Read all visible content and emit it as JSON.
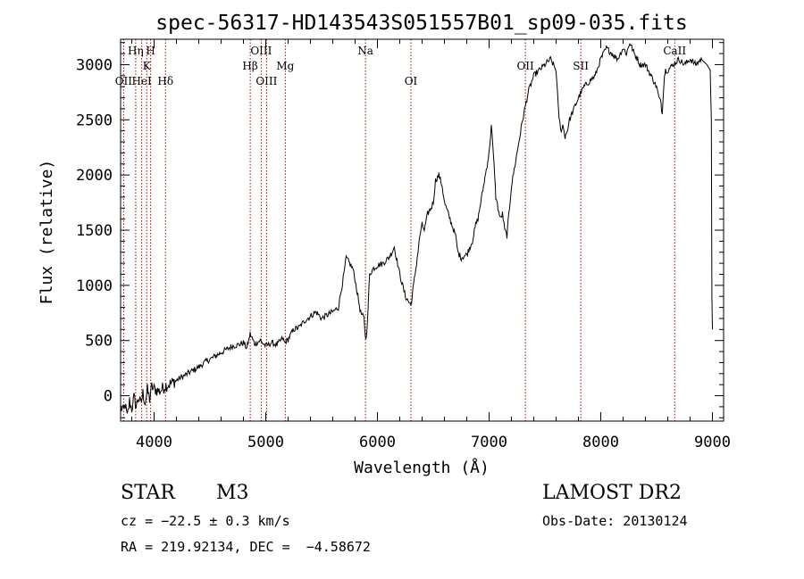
{
  "chart_data": {
    "type": "line",
    "title": "spec-56317-HD143543S051557B01_sp09-035.fits",
    "xlabel": "Wavelength (Å)",
    "ylabel": "Flux (relative)",
    "xlim": [
      3700,
      9100
    ],
    "ylim": [
      -230,
      3230
    ],
    "x_ticks": [
      4000,
      5000,
      6000,
      7000,
      8000,
      9000
    ],
    "y_ticks": [
      0,
      500,
      1000,
      1500,
      2000,
      2500,
      3000
    ],
    "x_tick_labels": [
      "4000",
      "5000",
      "6000",
      "7000",
      "8000",
      "9000"
    ],
    "y_tick_labels": [
      "0",
      "500",
      "1000",
      "1500",
      "2000",
      "2500",
      "3000"
    ],
    "grid": false,
    "series": [
      {
        "line_color": "#000000",
        "x": [
          3700,
          3720,
          3740,
          3760,
          3780,
          3800,
          3820,
          3840,
          3860,
          3880,
          3900,
          3920,
          3940,
          3960,
          3980,
          4000,
          4050,
          4100,
          4150,
          4200,
          4250,
          4300,
          4350,
          4400,
          4450,
          4500,
          4550,
          4600,
          4650,
          4700,
          4750,
          4800,
          4830,
          4860,
          4900,
          4950,
          5000,
          5050,
          5100,
          5150,
          5170,
          5200,
          5250,
          5300,
          5350,
          5400,
          5450,
          5500,
          5550,
          5600,
          5650,
          5700,
          5720,
          5750,
          5780,
          5800,
          5850,
          5880,
          5895,
          5910,
          5930,
          5960,
          6000,
          6050,
          6100,
          6130,
          6150,
          6200,
          6250,
          6280,
          6300,
          6350,
          6380,
          6400,
          6420,
          6450,
          6480,
          6500,
          6520,
          6550,
          6580,
          6600,
          6650,
          6700,
          6720,
          6750,
          6800,
          6850,
          6880,
          6900,
          6950,
          7000,
          7020,
          7050,
          7060,
          7080,
          7100,
          7120,
          7140,
          7160,
          7200,
          7250,
          7300,
          7350,
          7400,
          7450,
          7500,
          7550,
          7600,
          7620,
          7640,
          7660,
          7680,
          7700,
          7720,
          7740,
          7760,
          7800,
          7850,
          7900,
          7950,
          8000,
          8050,
          8100,
          8150,
          8200,
          8230,
          8260,
          8300,
          8330,
          8350,
          8400,
          8450,
          8500,
          8520,
          8540,
          8550,
          8560,
          8570,
          8580,
          8600,
          8650,
          8700,
          8750,
          8800,
          8850,
          8900,
          8950,
          8980,
          8990,
          8995,
          9000
        ],
        "y": [
          -100,
          -150,
          -80,
          -200,
          -50,
          -120,
          -20,
          -100,
          -10,
          -80,
          20,
          -60,
          50,
          -30,
          80,
          60,
          40,
          90,
          110,
          140,
          170,
          200,
          230,
          260,
          300,
          330,
          360,
          390,
          420,
          450,
          460,
          480,
          430,
          560,
          470,
          500,
          450,
          480,
          460,
          520,
          480,
          510,
          600,
          620,
          680,
          720,
          760,
          700,
          730,
          760,
          800,
          1100,
          1250,
          1200,
          1150,
          1050,
          750,
          700,
          500,
          650,
          1100,
          1150,
          1180,
          1200,
          1250,
          1300,
          1350,
          1100,
          900,
          850,
          820,
          1200,
          1450,
          1550,
          1500,
          1650,
          1700,
          1750,
          1950,
          2000,
          1900,
          1750,
          1600,
          1450,
          1300,
          1250,
          1280,
          1400,
          1550,
          1600,
          1900,
          2200,
          2450,
          2000,
          1800,
          1700,
          1600,
          1650,
          1500,
          1450,
          1900,
          2200,
          2500,
          2750,
          2900,
          2950,
          3000,
          3050,
          2950,
          2600,
          2400,
          2450,
          2350,
          2400,
          2500,
          2550,
          2600,
          2700,
          2800,
          2850,
          2900,
          3050,
          3150,
          3100,
          3050,
          3150,
          3100,
          3200,
          3100,
          3050,
          3000,
          3000,
          2900,
          2800,
          2700,
          2650,
          2550,
          2750,
          2900,
          2950,
          2950,
          3000,
          3050,
          3000,
          3050,
          3000,
          3050,
          3000,
          2950,
          2500,
          900,
          600
        ]
      }
    ],
    "line_labels": [
      {
        "text": "Hη",
        "x": 3835,
        "row": 1,
        "color": "#b40000"
      },
      {
        "text": "H",
        "x": 3969,
        "row": 1,
        "color": "#b40000"
      },
      {
        "text": "K",
        "x": 3934,
        "row": 2,
        "color": "#b40000"
      },
      {
        "text": "OII",
        "x": 3727,
        "row": 3,
        "color": "#b40000"
      },
      {
        "text": "HeI",
        "x": 3889,
        "row": 3,
        "color": "#b40000"
      },
      {
        "text": "Hδ",
        "x": 4102,
        "row": 3,
        "color": "#b40000"
      },
      {
        "text": "OIII",
        "x": 4959,
        "row": 1,
        "color": "#b40000"
      },
      {
        "text": "Hβ",
        "x": 4861,
        "row": 2,
        "color": "#b40000"
      },
      {
        "text": "Mg",
        "x": 5175,
        "row": 2,
        "color": "#b40000"
      },
      {
        "text": "OIII",
        "x": 5007,
        "row": 3,
        "color": "#b40000"
      },
      {
        "text": "Na",
        "x": 5893,
        "row": 1,
        "color": "#b40000"
      },
      {
        "text": "OI",
        "x": 6300,
        "row": 3,
        "color": "#b40000"
      },
      {
        "text": "OII",
        "x": 7325,
        "row": 2,
        "color": "#b40000"
      },
      {
        "text": "SII",
        "x": 7821,
        "row": 2,
        "color": "#b40000"
      },
      {
        "text": "CaII",
        "x": 8662,
        "row": 1,
        "color": "#b40000"
      }
    ],
    "line_positions": [
      3727,
      3835,
      3889,
      3934,
      3969,
      4102,
      4861,
      4959,
      5007,
      5175,
      5893,
      6300,
      7325,
      7821,
      8662
    ]
  },
  "info": {
    "class_label": "STAR",
    "subclass": "M3",
    "survey": "LAMOST DR2",
    "cz": "cz = −22.5 ± 0.3 km/s",
    "obs_date": "Obs-Date: 20130124",
    "coords": "RA = 219.92134, DEC =  −4.58672"
  }
}
